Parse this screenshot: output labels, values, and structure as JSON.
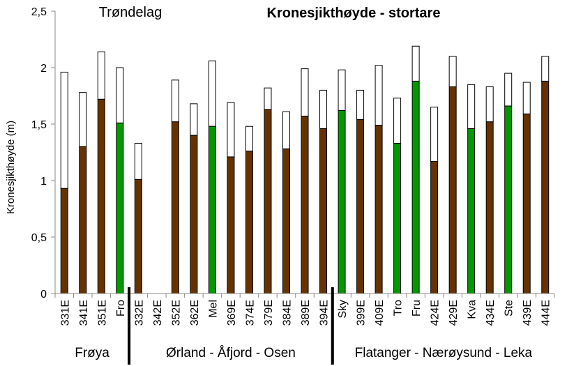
{
  "chart_data": {
    "type": "bar",
    "stacked": true,
    "title": "Kronesjikthøyde - stortare",
    "region_label": "Trøndelag",
    "ylabel": "Kronesjikthøyde  (m)",
    "xlabel": "",
    "ylim": [
      0,
      2.5
    ],
    "yticks": [
      "0",
      "0,5",
      "1",
      "1,5",
      "2",
      "2,5"
    ],
    "ytick_values": [
      0,
      0.5,
      1,
      1.5,
      2,
      2.5
    ],
    "grid": false,
    "categories": [
      "331E",
      "341E",
      "351E",
      "Fro",
      "332E",
      "342E",
      "352E",
      "362E",
      "Mel",
      "369E",
      "374E",
      "379E",
      "384E",
      "389E",
      "394E",
      "Sky",
      "399E",
      "409E",
      "Tro",
      "Fru",
      "424E",
      "429E",
      "Kva",
      "434E",
      "Ste",
      "439E",
      "444E"
    ],
    "bar_colors": [
      "brown",
      "brown",
      "brown",
      "green",
      "brown",
      "none",
      "brown",
      "brown",
      "green",
      "brown",
      "brown",
      "brown",
      "brown",
      "brown",
      "brown",
      "green",
      "brown",
      "brown",
      "green",
      "green",
      "brown",
      "brown",
      "green",
      "brown",
      "green",
      "brown",
      "brown"
    ],
    "series": [
      {
        "values": [
          0.93,
          1.3,
          1.72,
          1.51,
          1.01,
          null,
          1.52,
          1.4,
          1.48,
          1.21,
          1.26,
          1.63,
          1.28,
          1.57,
          1.46,
          1.62,
          1.54,
          1.49,
          1.33,
          1.88,
          1.17,
          1.83,
          1.46,
          1.52,
          1.66,
          1.59,
          1.88
        ]
      },
      {
        "values_total": [
          1.96,
          1.78,
          2.14,
          2.0,
          1.33,
          null,
          1.89,
          1.68,
          2.06,
          1.69,
          1.48,
          1.82,
          1.61,
          1.99,
          1.8,
          1.98,
          1.8,
          2.02,
          1.73,
          2.19,
          1.65,
          2.1,
          1.85,
          1.83,
          1.95,
          1.87,
          2.1
        ]
      }
    ],
    "groups": [
      {
        "label": "Frøya",
        "count": 4
      },
      {
        "label": "Ørland - Åfjord - Osen",
        "count": 11
      },
      {
        "label": "Flatanger - Nærøysund - Leka",
        "count": 12
      }
    ],
    "colors": {
      "brown": "#663300",
      "green": "#009900",
      "upper": "#ffffff",
      "axis": "#888888"
    }
  }
}
